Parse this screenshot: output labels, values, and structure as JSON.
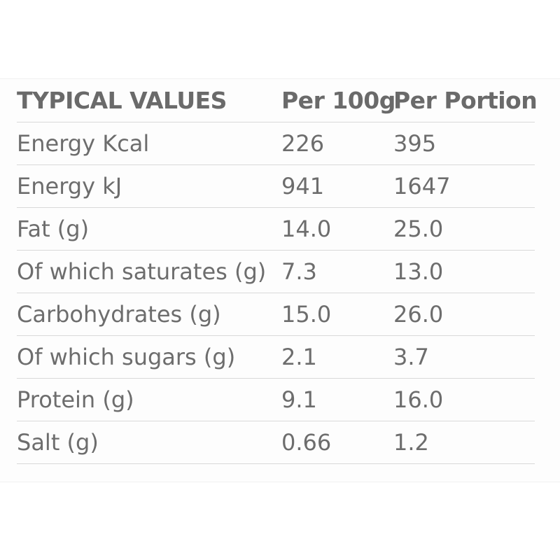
{
  "table": {
    "headers": {
      "name": "TYPICAL VALUES",
      "per_100g": "Per 100g",
      "per_portion": "Per Portion"
    },
    "rows": [
      {
        "name": "Energy Kcal",
        "per_100g": "226",
        "per_portion": "395"
      },
      {
        "name": "Energy kJ",
        "per_100g": "941",
        "per_portion": "1647"
      },
      {
        "name": "Fat (g)",
        "per_100g": "14.0",
        "per_portion": "25.0"
      },
      {
        "name": "Of which saturates (g)",
        "per_100g": "7.3",
        "per_portion": "13.0"
      },
      {
        "name": "Carbohydrates (g)",
        "per_100g": "15.0",
        "per_portion": "26.0"
      },
      {
        "name": "Of which sugars (g)",
        "per_100g": "2.1",
        "per_portion": "3.7"
      },
      {
        "name": "Protein (g)",
        "per_100g": "9.1",
        "per_portion": "16.0"
      },
      {
        "name": "Salt (g)",
        "per_100g": "0.66",
        "per_portion": "1.2"
      }
    ]
  },
  "colors": {
    "text": "#6d6d6d",
    "divider": "#d9d9d9",
    "background": "#ffffff"
  }
}
